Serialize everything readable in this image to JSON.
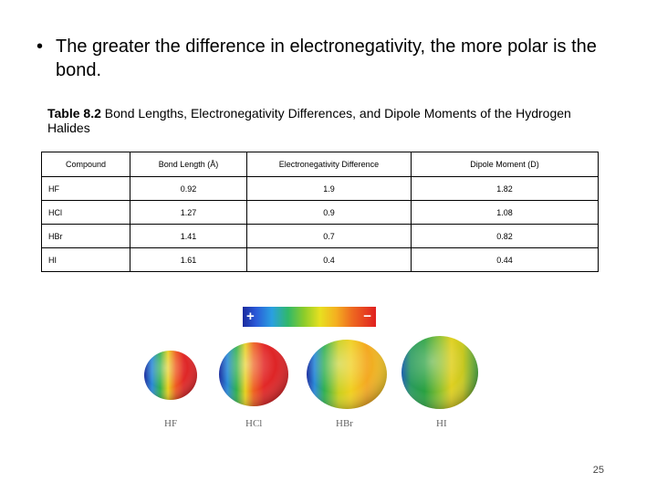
{
  "bullet": {
    "text": "The greater the difference in electronegativity, the more polar is the bond."
  },
  "table": {
    "title_bold": "Table 8.2",
    "title_rest": " Bond Lengths, Electronegativity Differences, and Dipole Moments of the Hydrogen Halides",
    "headers": [
      "Compound",
      "Bond Length (Å)",
      "Electronegativity Difference",
      "Dipole Moment (D)"
    ],
    "rows": [
      [
        "HF",
        "0.92",
        "1.9",
        "1.82"
      ],
      [
        "HCl",
        "1.27",
        "0.9",
        "1.08"
      ],
      [
        "HBr",
        "1.41",
        "0.7",
        "0.82"
      ],
      [
        "HI",
        "1.61",
        "0.4",
        "0.44"
      ]
    ]
  },
  "colorbar": {
    "plus": "+",
    "minus": "−"
  },
  "molecules": {
    "labels": [
      "HF",
      "HCl",
      "HBr",
      "HI"
    ]
  },
  "page_number": "25"
}
